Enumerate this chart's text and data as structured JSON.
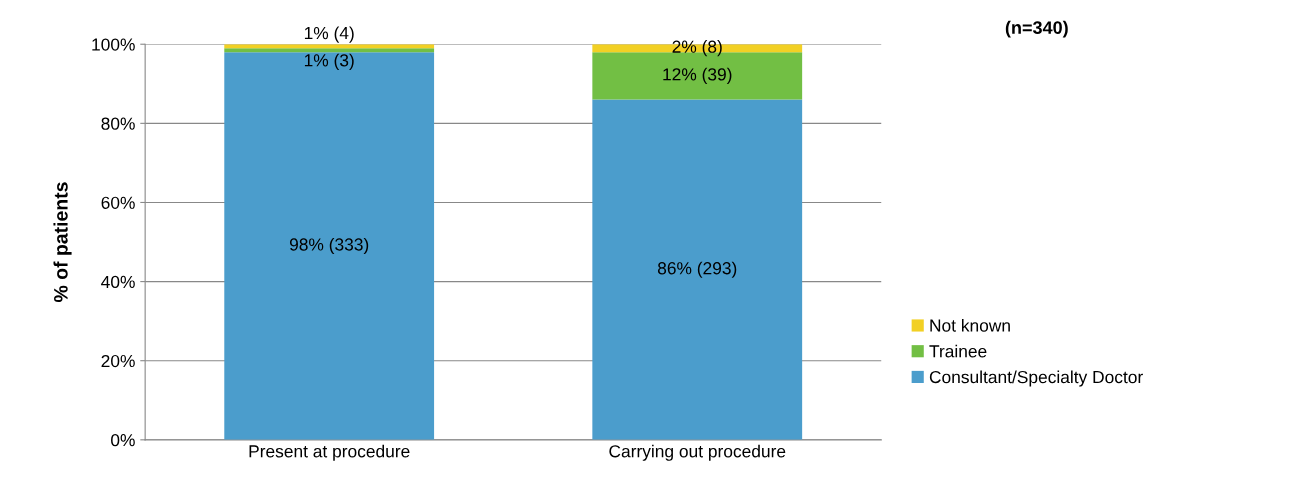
{
  "chart_data": {
    "type": "bar",
    "stacked": true,
    "ylabel": "% of patients",
    "categories": [
      "Present at procedure",
      "Carrying out procedure"
    ],
    "series": [
      {
        "name": "Consultant/Specialty Doctor",
        "color": "#4b9dcc",
        "values": [
          98,
          86
        ],
        "value_labels": [
          "98% (333)",
          "86% (293)"
        ]
      },
      {
        "name": "Trainee",
        "color": "#72bf44",
        "values": [
          1,
          12
        ],
        "value_labels": [
          "1% (3)",
          "12% (39)"
        ]
      },
      {
        "name": "Not known",
        "color": "#f2d024",
        "values": [
          1,
          2
        ],
        "value_labels": [
          "1% (4)",
          "2% (8)"
        ]
      }
    ],
    "ylim": [
      0,
      100
    ],
    "yticks": [
      {
        "value": 0,
        "label": "0%"
      },
      {
        "value": 20,
        "label": "20%"
      },
      {
        "value": 40,
        "label": "40%"
      },
      {
        "value": 60,
        "label": "60%"
      },
      {
        "value": 80,
        "label": "80%"
      },
      {
        "value": 100,
        "label": "100%"
      }
    ],
    "grid": "y",
    "legend": "right",
    "annotations": [
      "(n=340)"
    ]
  }
}
